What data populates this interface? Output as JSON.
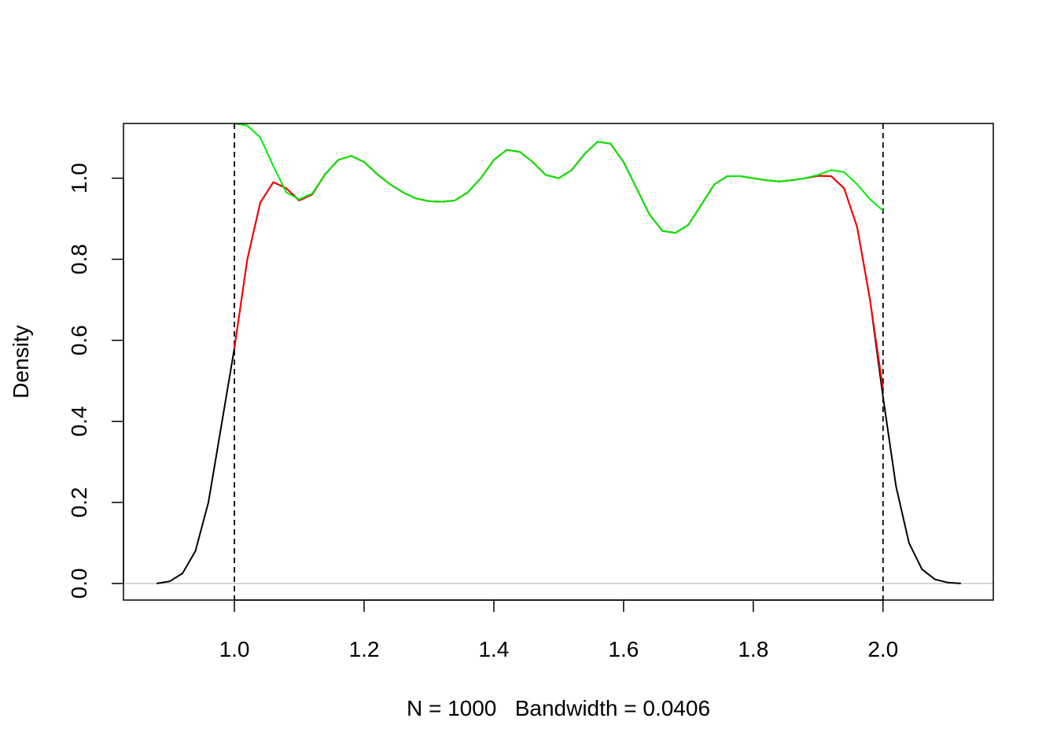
{
  "chart_data": {
    "type": "line",
    "title": "",
    "xlabel": "N = 1000   Bandwidth = 0.0406",
    "ylabel": "Density",
    "xlim": [
      0.829,
      2.17
    ],
    "ylim": [
      -0.041,
      1.135
    ],
    "xticks": [
      1.0,
      1.2,
      1.4,
      1.6,
      1.8,
      2.0
    ],
    "xtick_labels": [
      "1.0",
      "1.2",
      "1.4",
      "1.6",
      "1.8",
      "2.0"
    ],
    "yticks": [
      0.0,
      0.2,
      0.4,
      0.6,
      0.8,
      1.0
    ],
    "ytick_labels": [
      "0.0",
      "0.2",
      "0.4",
      "0.6",
      "0.8",
      "1.0"
    ],
    "grid": false,
    "reference_lines": {
      "horizontal_zero": {
        "y": 0,
        "color": "#bebebe"
      },
      "vertical_dashed": [
        1.0,
        2.0
      ]
    },
    "series": [
      {
        "color": "#000000",
        "x": [
          0.88,
          0.9,
          0.92,
          0.94,
          0.96,
          0.98,
          1.0,
          1.02,
          1.04,
          1.06,
          1.08,
          1.1,
          1.12,
          1.14,
          1.16,
          1.18,
          1.2,
          1.22,
          1.24,
          1.26,
          1.28,
          1.3,
          1.32,
          1.34,
          1.36,
          1.38,
          1.4,
          1.42,
          1.44,
          1.46,
          1.48,
          1.5,
          1.52,
          1.54,
          1.56,
          1.58,
          1.6,
          1.62,
          1.64,
          1.66,
          1.68,
          1.7,
          1.72,
          1.74,
          1.76,
          1.78,
          1.8,
          1.82,
          1.84,
          1.86,
          1.88,
          1.9,
          1.92,
          1.94,
          1.96,
          1.98,
          2.0,
          2.02,
          2.04,
          2.06,
          2.08,
          2.1,
          2.12
        ],
        "y": [
          0.0,
          0.005,
          0.025,
          0.08,
          0.2,
          0.39,
          0.58,
          0.8,
          0.94,
          0.99,
          0.975,
          0.945,
          0.96,
          1.01,
          1.045,
          1.055,
          1.04,
          1.01,
          0.985,
          0.965,
          0.95,
          0.943,
          0.942,
          0.945,
          0.965,
          1.0,
          1.045,
          1.07,
          1.065,
          1.04,
          1.008,
          1.0,
          1.02,
          1.06,
          1.09,
          1.085,
          1.04,
          0.975,
          0.91,
          0.87,
          0.865,
          0.885,
          0.935,
          0.985,
          1.005,
          1.005,
          1.0,
          0.995,
          0.992,
          0.995,
          1.0,
          1.006,
          1.005,
          0.975,
          0.88,
          0.7,
          0.46,
          0.24,
          0.1,
          0.035,
          0.01,
          0.002,
          0.0
        ]
      },
      {
        "color": "#ff0000",
        "x": [
          1.0,
          1.02,
          1.04,
          1.06,
          1.08,
          1.1,
          1.12,
          1.14,
          1.16,
          1.18,
          1.2,
          1.22,
          1.24,
          1.26,
          1.28,
          1.3,
          1.32,
          1.34,
          1.36,
          1.38,
          1.4,
          1.42,
          1.44,
          1.46,
          1.48,
          1.5,
          1.52,
          1.54,
          1.56,
          1.58,
          1.6,
          1.62,
          1.64,
          1.66,
          1.68,
          1.7,
          1.72,
          1.74,
          1.76,
          1.78,
          1.8,
          1.82,
          1.84,
          1.86,
          1.88,
          1.9,
          1.92,
          1.94,
          1.96,
          1.98,
          2.0
        ],
        "y": [
          0.58,
          0.8,
          0.94,
          0.99,
          0.975,
          0.945,
          0.96,
          1.01,
          1.045,
          1.055,
          1.04,
          1.01,
          0.985,
          0.965,
          0.95,
          0.943,
          0.942,
          0.945,
          0.965,
          1.0,
          1.045,
          1.07,
          1.065,
          1.04,
          1.008,
          1.0,
          1.02,
          1.06,
          1.09,
          1.085,
          1.04,
          0.975,
          0.91,
          0.87,
          0.865,
          0.885,
          0.935,
          0.985,
          1.005,
          1.005,
          1.0,
          0.995,
          0.992,
          0.995,
          1.0,
          1.006,
          1.005,
          0.975,
          0.88,
          0.7,
          0.48
        ]
      },
      {
        "color": "#00ee00",
        "x": [
          1.0,
          1.02,
          1.04,
          1.06,
          1.08,
          1.1,
          1.12,
          1.14,
          1.16,
          1.18,
          1.2,
          1.22,
          1.24,
          1.26,
          1.28,
          1.3,
          1.32,
          1.34,
          1.36,
          1.38,
          1.4,
          1.42,
          1.44,
          1.46,
          1.48,
          1.5,
          1.52,
          1.54,
          1.56,
          1.58,
          1.6,
          1.62,
          1.64,
          1.66,
          1.68,
          1.7,
          1.72,
          1.74,
          1.76,
          1.78,
          1.8,
          1.82,
          1.84,
          1.86,
          1.88,
          1.9,
          1.92,
          1.94,
          1.96,
          1.98,
          2.0
        ],
        "y": [
          1.135,
          1.13,
          1.1,
          1.03,
          0.965,
          0.948,
          0.962,
          1.01,
          1.045,
          1.055,
          1.04,
          1.01,
          0.985,
          0.965,
          0.95,
          0.943,
          0.942,
          0.945,
          0.965,
          1.0,
          1.045,
          1.07,
          1.065,
          1.04,
          1.008,
          1.0,
          1.02,
          1.06,
          1.09,
          1.085,
          1.04,
          0.975,
          0.91,
          0.87,
          0.865,
          0.885,
          0.935,
          0.985,
          1.005,
          1.005,
          1.0,
          0.995,
          0.992,
          0.995,
          1.0,
          1.008,
          1.02,
          1.015,
          0.985,
          0.948,
          0.92
        ]
      }
    ]
  }
}
